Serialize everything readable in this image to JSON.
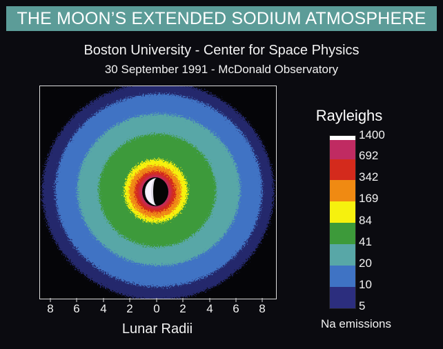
{
  "title": "THE MOON’S EXTENDED SODIUM ATMOSPHERE",
  "subtitle_1": "Boston University - Center for Space Physics",
  "subtitle_2": "30 September 1991 - McDonald Observatory",
  "x_axis": {
    "label": "Lunar Radii",
    "ticks": [
      "8",
      "6",
      "4",
      "2",
      "0",
      "2",
      "4",
      "6",
      "8"
    ]
  },
  "legend": {
    "title": "Rayleighs",
    "footer": "Na emissions",
    "levels": [
      {
        "label": "1400",
        "color": "#ffffff"
      },
      {
        "label": "692",
        "color": "#c02b62"
      },
      {
        "label": "342",
        "color": "#d42a1c"
      },
      {
        "label": "169",
        "color": "#f08a12"
      },
      {
        "label": "84",
        "color": "#f6f10e"
      },
      {
        "label": "41",
        "color": "#3d9a3a"
      },
      {
        "label": "20",
        "color": "#58a7a7"
      },
      {
        "label": "10",
        "color": "#3f73c4"
      },
      {
        "label": "5",
        "color": "#2c2e7e"
      }
    ]
  },
  "colors": {
    "title_bar": "#5c9c98",
    "background": "#0b0b10"
  }
}
